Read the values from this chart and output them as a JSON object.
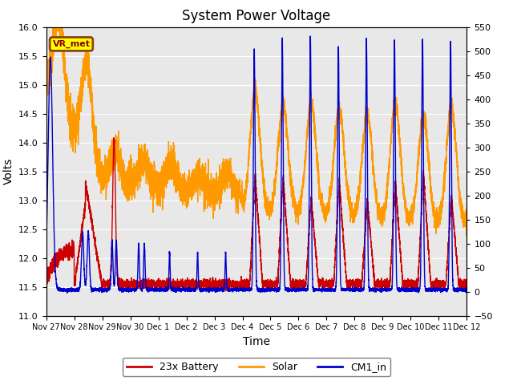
{
  "title": "System Power Voltage",
  "xlabel": "Time",
  "ylabel": "Volts",
  "ylim": [
    11.0,
    16.0
  ],
  "ylim2": [
    -50,
    550
  ],
  "background_color": "#e8e8e8",
  "fig_background": "#ffffff",
  "legend_labels": [
    "23x Battery",
    "Solar",
    "CM1_in"
  ],
  "legend_colors": [
    "#cc0000",
    "#ff9900",
    "#0000cc"
  ],
  "vr_met_label": "VR_met",
  "x_tick_labels": [
    "Nov 27",
    "Nov 28",
    "Nov 29",
    "Nov 30",
    "Dec 1",
    "Dec 2",
    "Dec 3",
    "Dec 4",
    "Dec 5",
    "Dec 6",
    "Dec 7",
    "Dec 8",
    "Dec 9",
    "Dec 10",
    "Dec 11",
    "Dec 12"
  ],
  "x_tick_positions": [
    0,
    1,
    2,
    3,
    4,
    5,
    6,
    7,
    8,
    9,
    10,
    11,
    12,
    13,
    14,
    15
  ],
  "yticks_left": [
    11.0,
    11.5,
    12.0,
    12.5,
    13.0,
    13.5,
    14.0,
    14.5,
    15.0,
    15.5,
    16.0
  ],
  "yticks_right": [
    -50,
    0,
    50,
    100,
    150,
    200,
    250,
    300,
    350,
    400,
    450,
    500,
    550
  ],
  "line_width": 1.0
}
